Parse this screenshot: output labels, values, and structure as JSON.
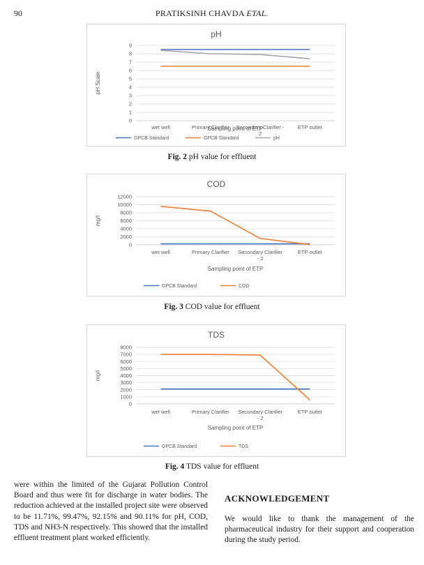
{
  "header": {
    "page_number": "90",
    "running_head": "PRATIKSINH CHAVDA",
    "running_head_suffix": "ETAL."
  },
  "colors": {
    "blue": "#4472c4",
    "orange": "#ed7d31",
    "gray": "#a5a5a5",
    "grid": "#d9d9d9",
    "axis": "#bfbfbf"
  },
  "chart_data": [
    {
      "type": "line",
      "title": "pH",
      "ylabel": "pH Scale",
      "xlabel": "Sampling point of ETP",
      "categories": [
        "wet well",
        "Primary Clarifier",
        "Secondary Clarifier -\n2",
        "ETP outlet"
      ],
      "ylim": [
        0,
        9
      ],
      "yticks": [
        0,
        1,
        2,
        3,
        4,
        5,
        6,
        7,
        8,
        9
      ],
      "grid": true,
      "legend": "bottom",
      "series": [
        {
          "name": "GPCB Standard",
          "color": "blue",
          "values": [
            8.5,
            8.5,
            8.5,
            8.5
          ]
        },
        {
          "name": "GPCB Standard",
          "color": "orange",
          "values": [
            6.5,
            6.5,
            6.5,
            6.5
          ]
        },
        {
          "name": "pH",
          "color": "gray",
          "values": [
            8.4,
            8.0,
            7.9,
            7.4
          ]
        }
      ]
    },
    {
      "type": "line",
      "title": "COD",
      "ylabel": "mg/l",
      "xlabel": "Sampling point of ETP",
      "categories": [
        "wet well",
        "Primary Clarifier",
        "Secondary Clarifier\n- 2",
        "ETP outlet"
      ],
      "ylim": [
        0,
        12000
      ],
      "yticks": [
        0,
        2000,
        4000,
        6000,
        8000,
        10000,
        12000
      ],
      "grid": true,
      "legend": "bottom",
      "series": [
        {
          "name": "GPCB Standard",
          "color": "blue",
          "values": [
            250,
            250,
            250,
            250
          ]
        },
        {
          "name": "COD",
          "color": "orange",
          "values": [
            9600,
            8400,
            1600,
            50
          ]
        }
      ]
    },
    {
      "type": "line",
      "title": "TDS",
      "ylabel": "mg/l",
      "xlabel": "Sampling point of ETP",
      "categories": [
        "wet well",
        "Primary Clarifier",
        "Secondary Clarifier\n- 2",
        "ETP outlet"
      ],
      "ylim": [
        0,
        8000
      ],
      "yticks": [
        0,
        1000,
        2000,
        3000,
        4000,
        5000,
        6000,
        7000,
        8000
      ],
      "grid": true,
      "legend": "bottom",
      "series": [
        {
          "name": "GPCB Standard",
          "color": "blue",
          "values": [
            2100,
            2100,
            2100,
            2100
          ]
        },
        {
          "name": "TDS",
          "color": "orange",
          "values": [
            7000,
            7000,
            6900,
            550
          ]
        }
      ]
    }
  ],
  "captions": [
    {
      "label": "Fig. 2",
      "text": "pH value for effluent"
    },
    {
      "label": "Fig. 3",
      "text": "COD value for effluent"
    },
    {
      "label": "Fig. 4",
      "text": "TDS value for effluent"
    }
  ],
  "body_text": "were within the limited of the Gujarat Pollution Control Board and thus were fit for discharge in water bodies. The reduction achieved at the installed project site were observed to be 11.71%, 99.47%, 92.15% and 90.11% for pH, COD, TDS and NH3-N respectively. This showed that the installed effluent treatment plant worked efficiently.",
  "acknowledgement": {
    "heading": "ACKNOWLEDGEMENT",
    "text": "We would like to thank the management of the pharmaceutical industry for their support and cooperation during the study period."
  }
}
